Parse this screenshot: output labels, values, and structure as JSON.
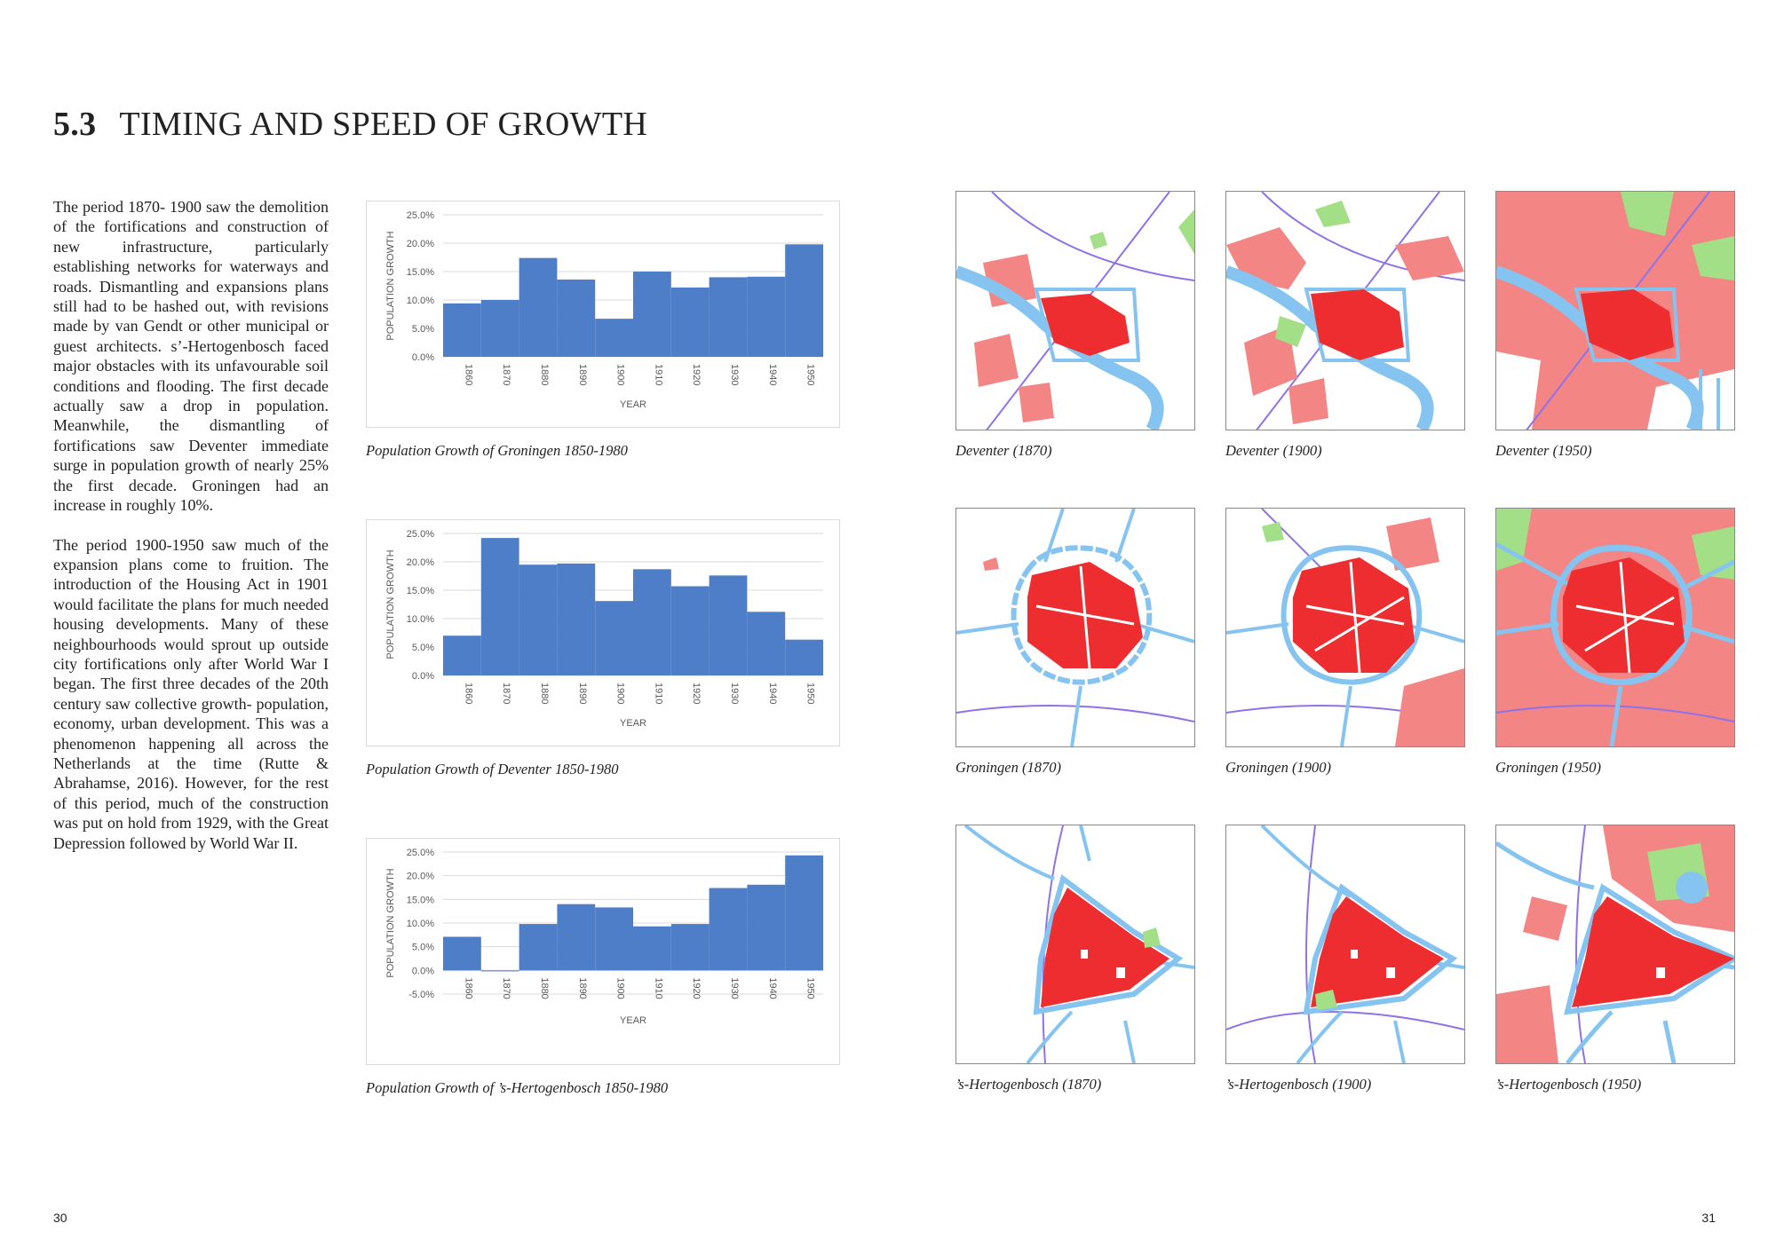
{
  "section": {
    "number": "5.3",
    "title": "TIMING AND SPEED OF GROWTH"
  },
  "body": {
    "paragraph1": "The period 1870- 1900 saw the demolition of the fortifications and construction of new infrastructure, particularly establishing networks for waterways and roads. Dismantling and expansions plans still had to be hashed out, with revisions made by van Gendt or other municipal or guest architects. s’-Hertogenbosch faced major obstacles with its unfavourable soil conditions and flooding. The first decade actually saw a drop in population. Meanwhile, the dismantling of fortifications saw Deventer immediate surge in population growth of nearly 25% the first decade. Groningen had an increase in roughly 10%.",
    "paragraph2": "The period 1900-1950 saw much of the expansion plans come to fruition. The introduction of the Housing Act in 1901 would facilitate the plans for much needed housing developments. Many of these neighbourhoods would sprout up outside city fortifications only after World War I began. The first three decades of the 20th century saw collective growth- population, economy, urban development. This was a phenomenon happening all across the Netherlands at the time (Rutte & Abrahamse, 2016). However, for the rest of this period, much of the construction was put on hold from 1929, with the Great Depression followed by World War II."
  },
  "chart_data": [
    {
      "type": "bar",
      "caption": "Population Growth of Groningen 1850-1980",
      "xlabel": "YEAR",
      "ylabel": "POPULATION GROWTH",
      "categories": [
        "1860",
        "1870",
        "1880",
        "1890",
        "1900",
        "1910",
        "1920",
        "1930",
        "1940",
        "1950"
      ],
      "values": [
        9.4,
        10.0,
        17.4,
        13.6,
        6.7,
        15.0,
        12.2,
        14.0,
        14.1,
        19.8
      ],
      "yticks": [
        "0.0%",
        "5.0%",
        "10.0%",
        "15.0%",
        "20.0%",
        "25.0%"
      ],
      "ylim": [
        0,
        25
      ],
      "color": "#4f7ec9"
    },
    {
      "type": "bar",
      "caption": "Population Growth of Deventer 1850-1980",
      "xlabel": "YEAR",
      "ylabel": "POPULATION GROWTH",
      "categories": [
        "1860",
        "1870",
        "1880",
        "1890",
        "1900",
        "1910",
        "1920",
        "1930",
        "1940",
        "1950"
      ],
      "values": [
        7.0,
        24.2,
        19.5,
        19.7,
        13.1,
        18.7,
        15.7,
        17.6,
        11.2,
        6.3
      ],
      "yticks": [
        "0.0%",
        "5.0%",
        "10.0%",
        "15.0%",
        "20.0%",
        "25.0%"
      ],
      "ylim": [
        0,
        25
      ],
      "color": "#4f7ec9"
    },
    {
      "type": "bar",
      "caption": "Population Growth of ’s-Hertogenbosch 1850-1980",
      "xlabel": "YEAR",
      "ylabel": "POPULATION GROWTH",
      "categories": [
        "1860",
        "1870",
        "1880",
        "1890",
        "1900",
        "1910",
        "1920",
        "1930",
        "1940",
        "1950"
      ],
      "values": [
        7.1,
        -0.2,
        9.8,
        14.0,
        13.3,
        9.3,
        9.8,
        17.4,
        18.1,
        24.3
      ],
      "yticks": [
        "-5.0%",
        "0.0%",
        "5.0%",
        "10.0%",
        "15.0%",
        "20.0%",
        "25.0%"
      ],
      "ylim": [
        -5,
        25
      ],
      "color": "#4f7ec9"
    }
  ],
  "maps": {
    "deventer": [
      "Deventer (1870)",
      "Deventer (1900)",
      "Deventer (1950)"
    ],
    "groningen": [
      "Groningen (1870)",
      "Groningen  (1900)",
      "Groningen  (1950)"
    ],
    "hertogenbosch": [
      "’s-Hertogenbosch (1870)",
      "’s-Hertogenbosch (1900)",
      "’s-Hertogenbosch (1950)"
    ]
  },
  "colors": {
    "historic_core": "#ed2d2f",
    "built_up": "#f38585",
    "green": "#a3df86",
    "water": "#85c4f0",
    "rail": "#8f72e8"
  },
  "page_numbers": {
    "left": "30",
    "right": "31"
  }
}
